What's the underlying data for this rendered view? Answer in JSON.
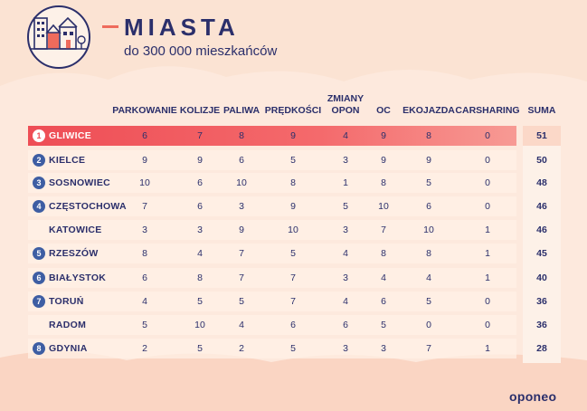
{
  "header": {
    "title": "MIASTA",
    "subtitle": "do 300 000 mieszkańców"
  },
  "columns": [
    "PARKOWANIE",
    "KOLIZJE",
    "PALIWA",
    "PRĘDKOŚCI",
    "ZMIANY OPON",
    "OC",
    "EKOJAZDA",
    "CARSHARING",
    "SUMA"
  ],
  "rows": [
    {
      "rank": "1",
      "city": "GLIWICE",
      "values": [
        "6",
        "7",
        "8",
        "9",
        "4",
        "9",
        "8",
        "0"
      ],
      "sum": "51"
    },
    {
      "rank": "2",
      "city": "KIELCE",
      "values": [
        "9",
        "9",
        "6",
        "5",
        "3",
        "9",
        "9",
        "0"
      ],
      "sum": "50"
    },
    {
      "rank": "3",
      "city": "SOSNOWIEC",
      "values": [
        "10",
        "6",
        "10",
        "8",
        "1",
        "8",
        "5",
        "0"
      ],
      "sum": "48"
    },
    {
      "rank": "4",
      "city": "CZĘSTOCHOWA",
      "values": [
        "7",
        "6",
        "3",
        "9",
        "5",
        "10",
        "6",
        "0"
      ],
      "sum": "46"
    },
    {
      "rank": "",
      "city": "KATOWICE",
      "values": [
        "3",
        "3",
        "9",
        "10",
        "3",
        "7",
        "10",
        "1"
      ],
      "sum": "46"
    },
    {
      "rank": "5",
      "city": "RZESZÓW",
      "values": [
        "8",
        "4",
        "7",
        "5",
        "4",
        "8",
        "8",
        "1"
      ],
      "sum": "45"
    },
    {
      "rank": "6",
      "city": "BIAŁYSTOK",
      "values": [
        "6",
        "8",
        "7",
        "7",
        "3",
        "4",
        "4",
        "1"
      ],
      "sum": "40"
    },
    {
      "rank": "7",
      "city": "TORUŃ",
      "values": [
        "4",
        "5",
        "5",
        "7",
        "4",
        "6",
        "5",
        "0"
      ],
      "sum": "36"
    },
    {
      "rank": "",
      "city": "RADOM",
      "values": [
        "5",
        "10",
        "4",
        "6",
        "6",
        "5",
        "0",
        "0"
      ],
      "sum": "36"
    },
    {
      "rank": "8",
      "city": "GDYNIA",
      "values": [
        "2",
        "5",
        "2",
        "5",
        "3",
        "3",
        "7",
        "1"
      ],
      "sum": "28"
    }
  ],
  "brand": "oponeo",
  "colors": {
    "navy": "#2b2f6b",
    "accent": "#ee4d55",
    "badge": "#3e5ea3",
    "background": "#fbe3d3"
  },
  "icons": {
    "logo": "city-buildings-icon"
  }
}
